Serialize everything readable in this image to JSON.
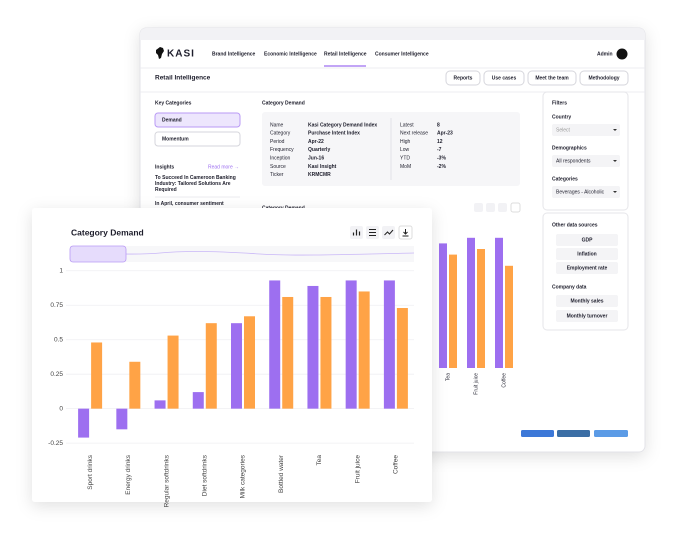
{
  "nav": {
    "logo": "KASI",
    "links": [
      "Brand Intelligence",
      "Economic Intelligence",
      "Retail Intelligence",
      "Consumer Intelligence"
    ],
    "user": "Admin"
  },
  "page": {
    "title": "Retail Intelligence",
    "buttons": [
      "Reports",
      "Use cases",
      "Meet the team",
      "Methodology"
    ]
  },
  "key_categories": {
    "title": "Key Categories",
    "items": [
      "Demand",
      "Momentum"
    ]
  },
  "insights": {
    "title": "Insights",
    "link": "Read more →",
    "items": [
      "To Succeed In Cameroon Banking Industry: Tailored Solutions Are Required",
      "In April, consumer sentiment"
    ]
  },
  "info": {
    "title": "Category Demand",
    "left": [
      [
        "Name",
        "Kasi Category Demand Index"
      ],
      [
        "Category",
        "Purchase Intent Index"
      ],
      [
        "Period",
        "Apr-22"
      ],
      [
        "Frequency",
        "Quarterly"
      ],
      [
        "Inception",
        "Jun-16"
      ],
      [
        "Source",
        "Kasi Insight"
      ],
      [
        "Ticker",
        "KRMCMR"
      ]
    ],
    "right": [
      [
        "Latest",
        "8"
      ],
      [
        "Next release",
        "Apr-23"
      ],
      [
        "High",
        "12"
      ],
      [
        "Low",
        "-7"
      ],
      [
        "YTD",
        "-3%"
      ],
      [
        "MoM",
        "-2%"
      ]
    ]
  },
  "filters": {
    "title": "Filters",
    "fields": [
      {
        "label": "Country",
        "value": "Select"
      },
      {
        "label": "Demographics",
        "value": "All respondents"
      },
      {
        "label": "Categories",
        "value": "Beverages - Alcoholic"
      }
    ]
  },
  "sources": {
    "title": "Other data sources",
    "items": [
      "GDP",
      "Inflation",
      "Employment rate"
    ]
  },
  "company": {
    "title": "Company data",
    "items": [
      "Monthly sales",
      "Monthly turnover"
    ]
  },
  "chart": {
    "type": "bar",
    "title": "Category Demand",
    "categories": [
      "Sport drinks",
      "Energy drinks",
      "Regular softdrinks",
      "Diet softdrinks",
      "Milk categories",
      "Bottled water",
      "Tea",
      "Fruit juice",
      "Coffee"
    ],
    "series": [
      {
        "color": "#9d6ff0",
        "values": [
          -0.21,
          -0.15,
          0.06,
          0.12,
          0.62,
          0.93,
          0.89,
          0.93,
          0.93
        ]
      },
      {
        "color": "#ffa346",
        "values": [
          0.48,
          0.34,
          0.53,
          0.62,
          0.67,
          0.81,
          0.81,
          0.85,
          0.73
        ]
      }
    ],
    "ylim": [
      -0.3,
      1.1
    ],
    "yticks": [
      1,
      0.75,
      0.5,
      0.25,
      0,
      -0.25
    ],
    "grid": true
  }
}
